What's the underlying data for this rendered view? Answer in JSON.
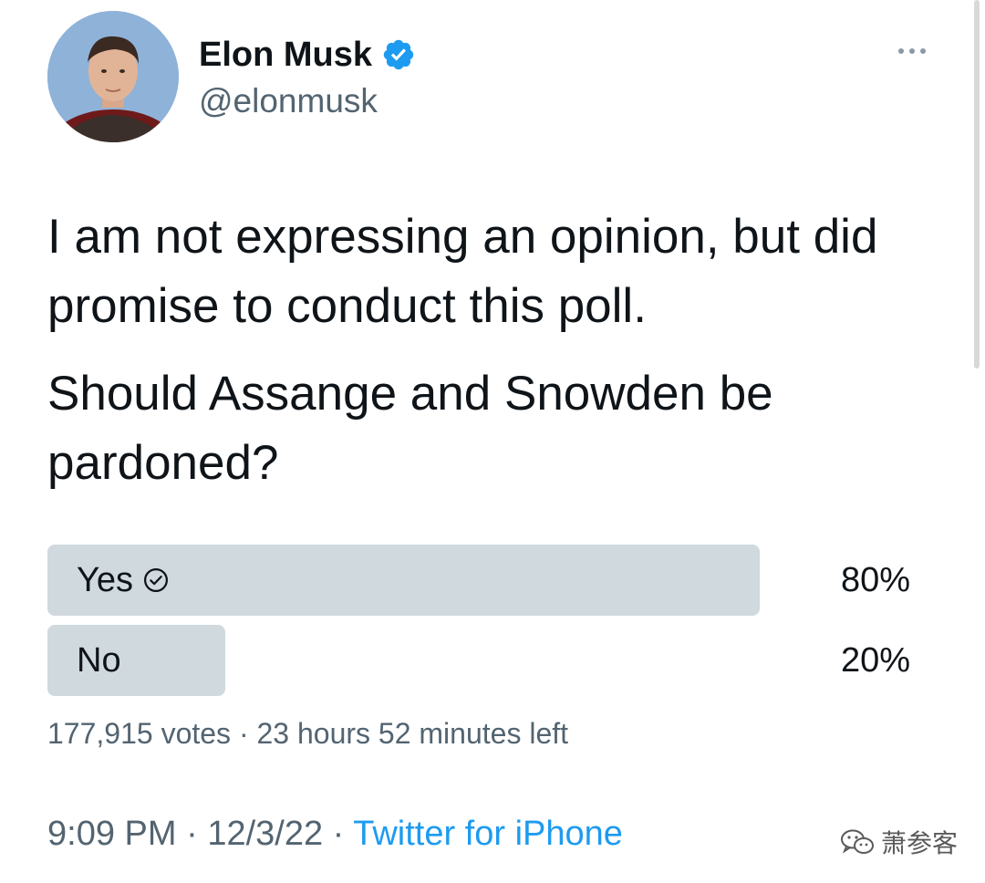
{
  "author": {
    "name": "Elon Musk",
    "handle": "@elonmusk",
    "verified_color": "#1d9bf0"
  },
  "tweet": {
    "paragraphs": [
      "I am not expressing an opinion, but did promise to conduct this poll.",
      "Should Assange and Snowden be pardoned?"
    ]
  },
  "poll": {
    "options": [
      {
        "label": "Yes",
        "percent_text": "80%",
        "share": 0.8,
        "winner": true
      },
      {
        "label": "No",
        "percent_text": "20%",
        "share": 0.2,
        "winner": false
      }
    ],
    "votes": "177,915 votes",
    "separator": "·",
    "time_left": "23 hours 52 minutes left"
  },
  "meta": {
    "time": "9:09 PM",
    "separator": "·",
    "date": "12/3/22",
    "source": "Twitter for iPhone"
  },
  "watermark": {
    "text": "萧参客",
    "icon": "wechat-icon"
  },
  "icons": {
    "more": "more-dots-icon",
    "verified": "verified-badge-icon",
    "winner": "check-circle-icon"
  },
  "colors": {
    "poll_fill": "#cfd9de",
    "link": "#1d9bf0",
    "secondary_text": "#536471"
  }
}
